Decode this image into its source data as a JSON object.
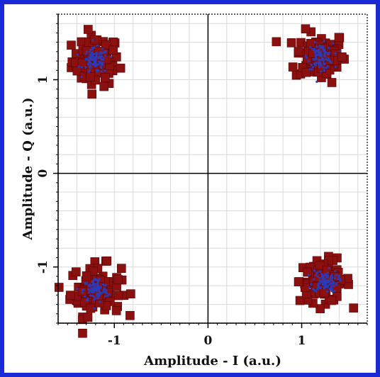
{
  "chart_data": {
    "type": "scatter",
    "title": "",
    "xlabel": "Amplitude - I (a.u.)",
    "ylabel": "Amplitude - Q (a.u.)",
    "xlim": [
      -1.6,
      1.7
    ],
    "ylim": [
      -1.6,
      1.7
    ],
    "xticks": [
      -1,
      0,
      1
    ],
    "xtick_labels": [
      "-1",
      "0",
      "1"
    ],
    "yticks": [
      -1,
      0,
      1
    ],
    "ytick_labels": [
      "-1",
      "0",
      "1"
    ],
    "grid": true,
    "minor_grid_step": 0.2,
    "legend": "none",
    "zero_lines": true,
    "series": [
      {
        "color": "#8b1010",
        "marker": "square",
        "clusters": [
          {
            "center": [
              -1.2,
              1.2
            ],
            "spread": [
              0.28,
              0.3
            ]
          },
          {
            "center": [
              1.2,
              1.25
            ],
            "spread": [
              0.3,
              0.3
            ]
          },
          {
            "center": [
              -1.2,
              -1.25
            ],
            "spread": [
              0.3,
              0.3
            ]
          },
          {
            "center": [
              1.25,
              -1.15
            ],
            "spread": [
              0.3,
              0.25
            ]
          }
        ]
      },
      {
        "color": "#2a3bb8",
        "marker": "dot",
        "clusters": [
          {
            "center": [
              -1.2,
              1.2
            ],
            "spread": [
              0.15,
              0.15
            ]
          },
          {
            "center": [
              1.2,
              1.25
            ],
            "spread": [
              0.15,
              0.15
            ]
          },
          {
            "center": [
              -1.2,
              -1.25
            ],
            "spread": [
              0.15,
              0.15
            ]
          },
          {
            "center": [
              1.25,
              -1.15
            ],
            "spread": [
              0.15,
              0.13
            ]
          }
        ]
      }
    ],
    "colors": {
      "frame": "#1a2bd6",
      "grid": "#d8d8d8",
      "axis": "#000000"
    }
  }
}
